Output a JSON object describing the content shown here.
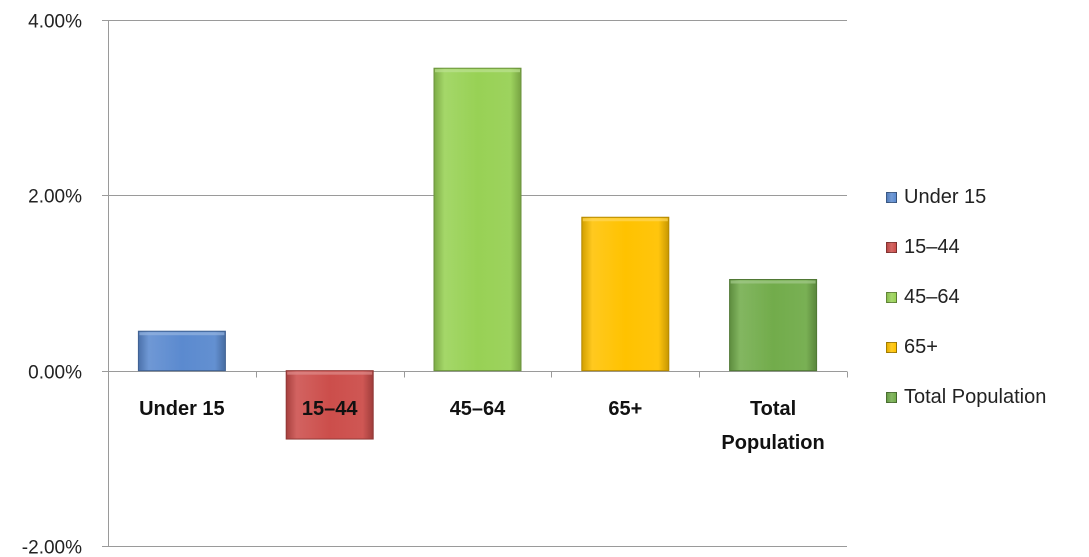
{
  "chart_data": {
    "type": "bar",
    "title": "",
    "xlabel": "",
    "ylabel": "",
    "categories": [
      "Under 15",
      "15–44",
      "45–64",
      "65+",
      "Total Population"
    ],
    "category_label_lines": [
      [
        "Under 15"
      ],
      [
        "15–44"
      ],
      [
        "45–64"
      ],
      [
        "65+"
      ],
      [
        "Total",
        "Population"
      ]
    ],
    "values": [
      0.45,
      -0.78,
      3.45,
      1.75,
      1.04
    ],
    "value_unit": "percent",
    "ylim": [
      -2.0,
      4.0
    ],
    "yticks": [
      -2.0,
      0.0,
      2.0,
      4.0
    ],
    "ytick_labels": [
      "-2.00%",
      "0.00%",
      "2.00%",
      "4.00%"
    ],
    "grid": true,
    "legend_position": "right",
    "colors": [
      "#5B8ACF",
      "#CC4E4B",
      "#98D155",
      "#FFC200",
      "#72AC4B"
    ],
    "legend": [
      "Under 15",
      "15–44",
      "45–64",
      "65+",
      "Total Population"
    ]
  }
}
